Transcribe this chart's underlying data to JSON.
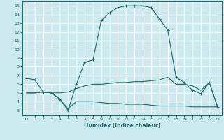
{
  "xlabel": "Humidex (Indice chaleur)",
  "ylabel": "",
  "xlim": [
    -0.5,
    23.5
  ],
  "ylim": [
    2.5,
    15.5
  ],
  "xticks": [
    0,
    1,
    2,
    3,
    4,
    5,
    6,
    7,
    8,
    9,
    10,
    11,
    12,
    13,
    14,
    15,
    16,
    17,
    18,
    19,
    20,
    21,
    22,
    23
  ],
  "yticks": [
    3,
    4,
    5,
    6,
    7,
    8,
    9,
    10,
    11,
    12,
    13,
    14,
    15
  ],
  "bg_color": "#cce9f0",
  "line_color": "#1a6b6b",
  "grid_color": "#ffffff",
  "line1_x": [
    0,
    1,
    2,
    3,
    4,
    5,
    6,
    7,
    8,
    9,
    10,
    11,
    12,
    13,
    14,
    15,
    16,
    17,
    18,
    19,
    20,
    21,
    22,
    23
  ],
  "line1_y": [
    6.7,
    6.5,
    5.1,
    5.0,
    4.3,
    3.0,
    6.0,
    8.5,
    8.8,
    13.3,
    14.2,
    14.8,
    15.0,
    15.0,
    15.0,
    14.8,
    13.5,
    12.2,
    6.8,
    6.2,
    5.3,
    4.9,
    6.2,
    3.4
  ],
  "line2_x": [
    0,
    1,
    2,
    3,
    4,
    5,
    6,
    7,
    8,
    9,
    10,
    11,
    12,
    13,
    14,
    15,
    16,
    17,
    18,
    19,
    20,
    21,
    22,
    23
  ],
  "line2_y": [
    5.0,
    5.0,
    5.1,
    5.0,
    5.0,
    5.1,
    5.5,
    5.8,
    6.0,
    6.0,
    6.1,
    6.2,
    6.2,
    6.3,
    6.3,
    6.4,
    6.5,
    6.8,
    6.0,
    6.0,
    5.8,
    5.3,
    6.2,
    3.4
  ],
  "line3_x": [
    0,
    1,
    2,
    3,
    4,
    5,
    6,
    7,
    8,
    9,
    10,
    11,
    12,
    13,
    14,
    15,
    16,
    17,
    18,
    19,
    20,
    21,
    22,
    23
  ],
  "line3_y": [
    5.0,
    5.0,
    5.1,
    5.0,
    4.3,
    3.2,
    4.0,
    4.0,
    4.0,
    3.9,
    3.8,
    3.8,
    3.7,
    3.7,
    3.7,
    3.6,
    3.5,
    3.5,
    3.5,
    3.5,
    3.4,
    3.4,
    3.4,
    3.4
  ]
}
